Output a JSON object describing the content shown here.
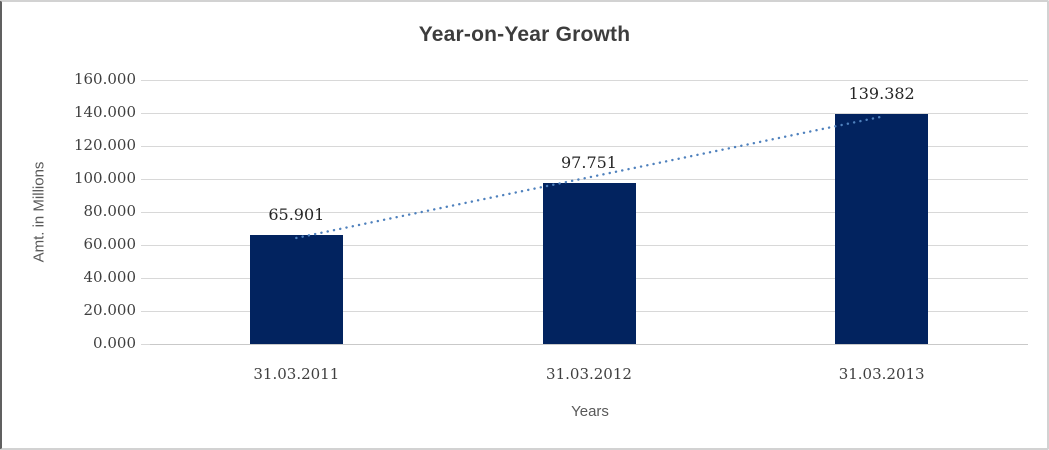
{
  "chart_data": {
    "type": "bar",
    "title": "Year-on-Year Growth",
    "xlabel": "Years",
    "ylabel": "Amt. in Millions",
    "categories": [
      "31.03.2011",
      "31.03.2012",
      "31.03.2013"
    ],
    "series": [
      {
        "name": "Amount",
        "values": [
          65.901,
          97.751,
          139.382
        ],
        "value_labels": [
          "65.901",
          "97.751",
          "139.382"
        ]
      }
    ],
    "ylim": [
      0,
      160
    ],
    "ytick_step": 20,
    "ytick_labels": [
      "0.000",
      "20.000",
      "40.000",
      "60.000",
      "80.000",
      "100.000",
      "120.000",
      "140.000",
      "160.000"
    ],
    "grid": "horizontal-only",
    "legend": "none",
    "trendline": {
      "type": "linear",
      "style": "dotted",
      "color": "#4f81bd"
    },
    "colors": {
      "bar": "#02235f",
      "trendline": "#4f81bd",
      "gridline": "#d8d8d8",
      "title_text": "#3d3d3d",
      "tick_text": "#3f3f3f",
      "axis_title_text": "#595959"
    }
  }
}
